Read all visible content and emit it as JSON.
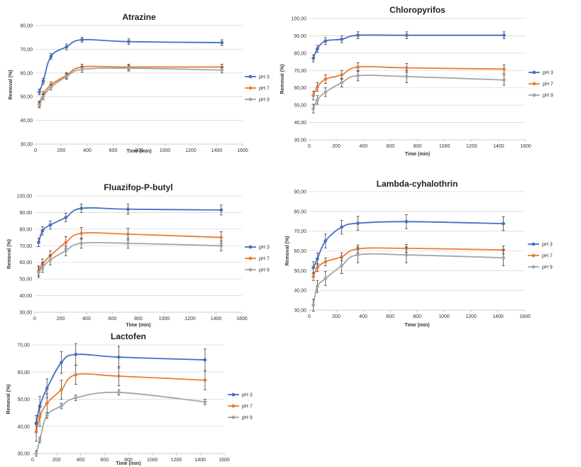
{
  "chart_data": [
    {
      "type": "line",
      "title": "Atrazine",
      "xlabel": "Time (min)",
      "ylabel": "Removal (%)",
      "xlim": [
        0,
        1600
      ],
      "xticks": [
        "0",
        "200",
        "400",
        "600",
        "800",
        "1000",
        "1200",
        "1400",
        "1600"
      ],
      "ylim": [
        30,
        80
      ],
      "yticks": [
        "30,00",
        "40,00",
        "50,00",
        "60,00",
        "70,00",
        "80,00"
      ],
      "legend_position": "right",
      "x": [
        30,
        60,
        120,
        240,
        360,
        720,
        1440
      ],
      "series": [
        {
          "name": "pH 3",
          "color": "#4472C4",
          "values": [
            52,
            56.5,
            67,
            71,
            74,
            73.2,
            72.8
          ],
          "errors": [
            1.2,
            1.2,
            1.2,
            1.2,
            1.0,
            1.2,
            1.2
          ]
        },
        {
          "name": "pH 7",
          "color": "#ED7D31",
          "values": [
            47,
            51,
            55,
            59,
            62.5,
            62.5,
            62.5
          ],
          "errors": [
            1.2,
            1.2,
            1.2,
            1.2,
            1.2,
            1.2,
            1.2
          ]
        },
        {
          "name": "pH 9",
          "color": "#A5A5A5",
          "values": [
            46.5,
            50,
            54,
            58.5,
            61.5,
            62,
            61.2
          ],
          "errors": [
            1.2,
            1.2,
            1.2,
            1.2,
            1.2,
            1.2,
            1.2
          ]
        }
      ]
    },
    {
      "type": "line",
      "title": "Chloropyrifos",
      "xlabel": "Time (min)",
      "ylabel": "Removal (%)",
      "xlim": [
        0,
        1600
      ],
      "xticks": [
        "0",
        "200",
        "400",
        "600",
        "800",
        "1000",
        "1200",
        "1400",
        "1600"
      ],
      "ylim": [
        30,
        100
      ],
      "yticks": [
        "30,00",
        "40,00",
        "50,00",
        "60,00",
        "70,00",
        "80,00",
        "90,00",
        "100,00"
      ],
      "legend_position": "right",
      "x": [
        30,
        60,
        120,
        240,
        360,
        720,
        1440
      ],
      "series": [
        {
          "name": "pH 3",
          "color": "#4472C4",
          "values": [
            77,
            82.5,
            87,
            88,
            90.3,
            90.3,
            90.3
          ],
          "errors": [
            2,
            2,
            2,
            2,
            2,
            2,
            2
          ]
        },
        {
          "name": "pH 7",
          "color": "#ED7D31",
          "values": [
            55.5,
            60.5,
            65,
            67.5,
            72,
            71.5,
            70.8
          ],
          "errors": [
            2.5,
            2.5,
            2.5,
            2.5,
            2.5,
            2.5,
            2.5
          ]
        },
        {
          "name": "pH 9",
          "color": "#A5A5A5",
          "values": [
            48,
            53,
            57.5,
            63,
            67,
            66.5,
            64.5
          ],
          "errors": [
            2.5,
            2.5,
            2.5,
            2.5,
            3,
            3.5,
            3
          ]
        }
      ]
    },
    {
      "type": "line",
      "title": "Fluazifop-P-butyl",
      "xlabel": "Time (min)",
      "ylabel": "Removal (%)",
      "xlim": [
        0,
        1600
      ],
      "xticks": [
        "0",
        "200",
        "400",
        "600",
        "800",
        "1000",
        "1200",
        "1400",
        "1600"
      ],
      "ylim": [
        30,
        100
      ],
      "yticks": [
        "30,00",
        "40,00",
        "50,00",
        "60,00",
        "70,00",
        "80,00",
        "90,00",
        "100,00"
      ],
      "legend_position": "right",
      "x": [
        30,
        60,
        120,
        240,
        360,
        720,
        1440
      ],
      "series": [
        {
          "name": "pH 3",
          "color": "#4472C4",
          "values": [
            72,
            79,
            82.5,
            87,
            92.5,
            92,
            91.5
          ],
          "errors": [
            2.5,
            2.5,
            2.5,
            2.5,
            2.5,
            3,
            3
          ]
        },
        {
          "name": "pH 7",
          "color": "#ED7D31",
          "values": [
            55,
            59,
            64,
            72,
            77.5,
            77,
            75
          ],
          "errors": [
            3,
            3,
            3,
            3.5,
            3.5,
            3.5,
            3.5
          ]
        },
        {
          "name": "pH 9",
          "color": "#A5A5A5",
          "values": [
            54,
            57,
            61.5,
            67,
            71.5,
            71.5,
            70
          ],
          "errors": [
            3,
            3,
            3,
            3,
            3,
            3,
            3
          ]
        }
      ]
    },
    {
      "type": "line",
      "title": "Lambda-cyhalothrin",
      "xlabel": "Time (min)",
      "ylabel": "Removal (%)",
      "xlim": [
        0,
        1600
      ],
      "xticks": [
        "0",
        "200",
        "400",
        "600",
        "800",
        "1000",
        "1200",
        "1400",
        "1600"
      ],
      "ylim": [
        30,
        90
      ],
      "yticks": [
        "30,00",
        "40,00",
        "50,00",
        "60,00",
        "70,00",
        "80,00",
        "90,00"
      ],
      "legend_position": "right",
      "x": [
        30,
        60,
        120,
        240,
        360,
        720,
        1440
      ],
      "series": [
        {
          "name": "pH 3",
          "color": "#4472C4",
          "values": [
            51.5,
            56,
            65,
            72,
            74,
            74.8,
            73.8
          ],
          "errors": [
            3,
            3,
            3.5,
            3.5,
            3.5,
            3.5,
            3.5
          ]
        },
        {
          "name": "pH 7",
          "color": "#ED7D31",
          "values": [
            47,
            51.5,
            54.5,
            57,
            61,
            61.3,
            60.5
          ],
          "errors": [
            2,
            2,
            2,
            2,
            2,
            2,
            2
          ]
        },
        {
          "name": "pH 9",
          "color": "#A5A5A5",
          "values": [
            32.5,
            42,
            46,
            52.5,
            58,
            58,
            56.5
          ],
          "errors": [
            3,
            3,
            3.5,
            4,
            4,
            4,
            4
          ]
        }
      ]
    },
    {
      "type": "line",
      "title": "Lactofen",
      "xlabel": "Time (min)",
      "ylabel": "Removal (%)",
      "xlim": [
        0,
        1600
      ],
      "xticks": [
        "0",
        "200",
        "400",
        "600",
        "800",
        "1000",
        "1200",
        "1400",
        "1600"
      ],
      "ylim": [
        30,
        70
      ],
      "yticks": [
        "30,00",
        "40,00",
        "50,00",
        "60,00",
        "70,00"
      ],
      "legend_position": "right",
      "x": [
        30,
        60,
        120,
        240,
        360,
        720,
        1440
      ],
      "series": [
        {
          "name": "pH 3",
          "color": "#4472C4",
          "values": [
            41,
            47.5,
            54,
            63.5,
            66.5,
            65.5,
            64.5
          ],
          "errors": [
            3,
            3.5,
            3.5,
            4,
            4,
            4,
            4
          ]
        },
        {
          "name": "pH 7",
          "color": "#ED7D31",
          "values": [
            38,
            43.5,
            48.5,
            53.5,
            59,
            58.5,
            57
          ],
          "errors": [
            3.5,
            3.5,
            3.5,
            3.5,
            3.5,
            3.5,
            3.5
          ]
        },
        {
          "name": "pH 9",
          "color": "#A5A5A5",
          "values": [
            30,
            35,
            44,
            47.5,
            50.5,
            52.5,
            49
          ],
          "errors": [
            1,
            1,
            1,
            1,
            1,
            1,
            1
          ]
        }
      ]
    }
  ]
}
